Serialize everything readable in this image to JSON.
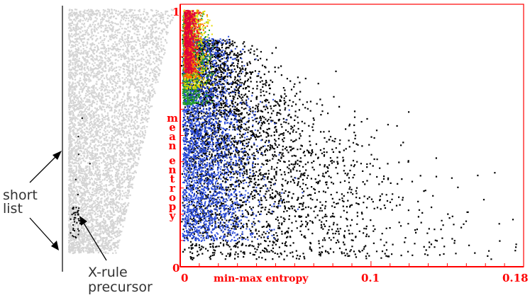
{
  "annotations": {
    "short_list": [
      "short",
      "list"
    ],
    "xrule": [
      "X-rule",
      "precursor"
    ]
  },
  "chart_data": {
    "type": "heatmap",
    "xlabel": "min-max entropy",
    "ylabel": "mean entropy",
    "x_ticks": [
      "0",
      "0.1",
      "0.18"
    ],
    "y_ticks": [
      "1",
      "0"
    ],
    "xlim": [
      0,
      0.18
    ],
    "ylim": [
      0,
      1
    ],
    "grid": false,
    "legend": "none",
    "colors": {
      "axis": "#ff0000",
      "sparse": "#000000",
      "low_density": "#2a4bd8",
      "mid_density": "#1f9a2a",
      "mid_high_density": "#e6d900",
      "high_density": "#ff6a00",
      "peak_density": "#e0003a",
      "background_points": "#d4d4d4"
    }
  }
}
